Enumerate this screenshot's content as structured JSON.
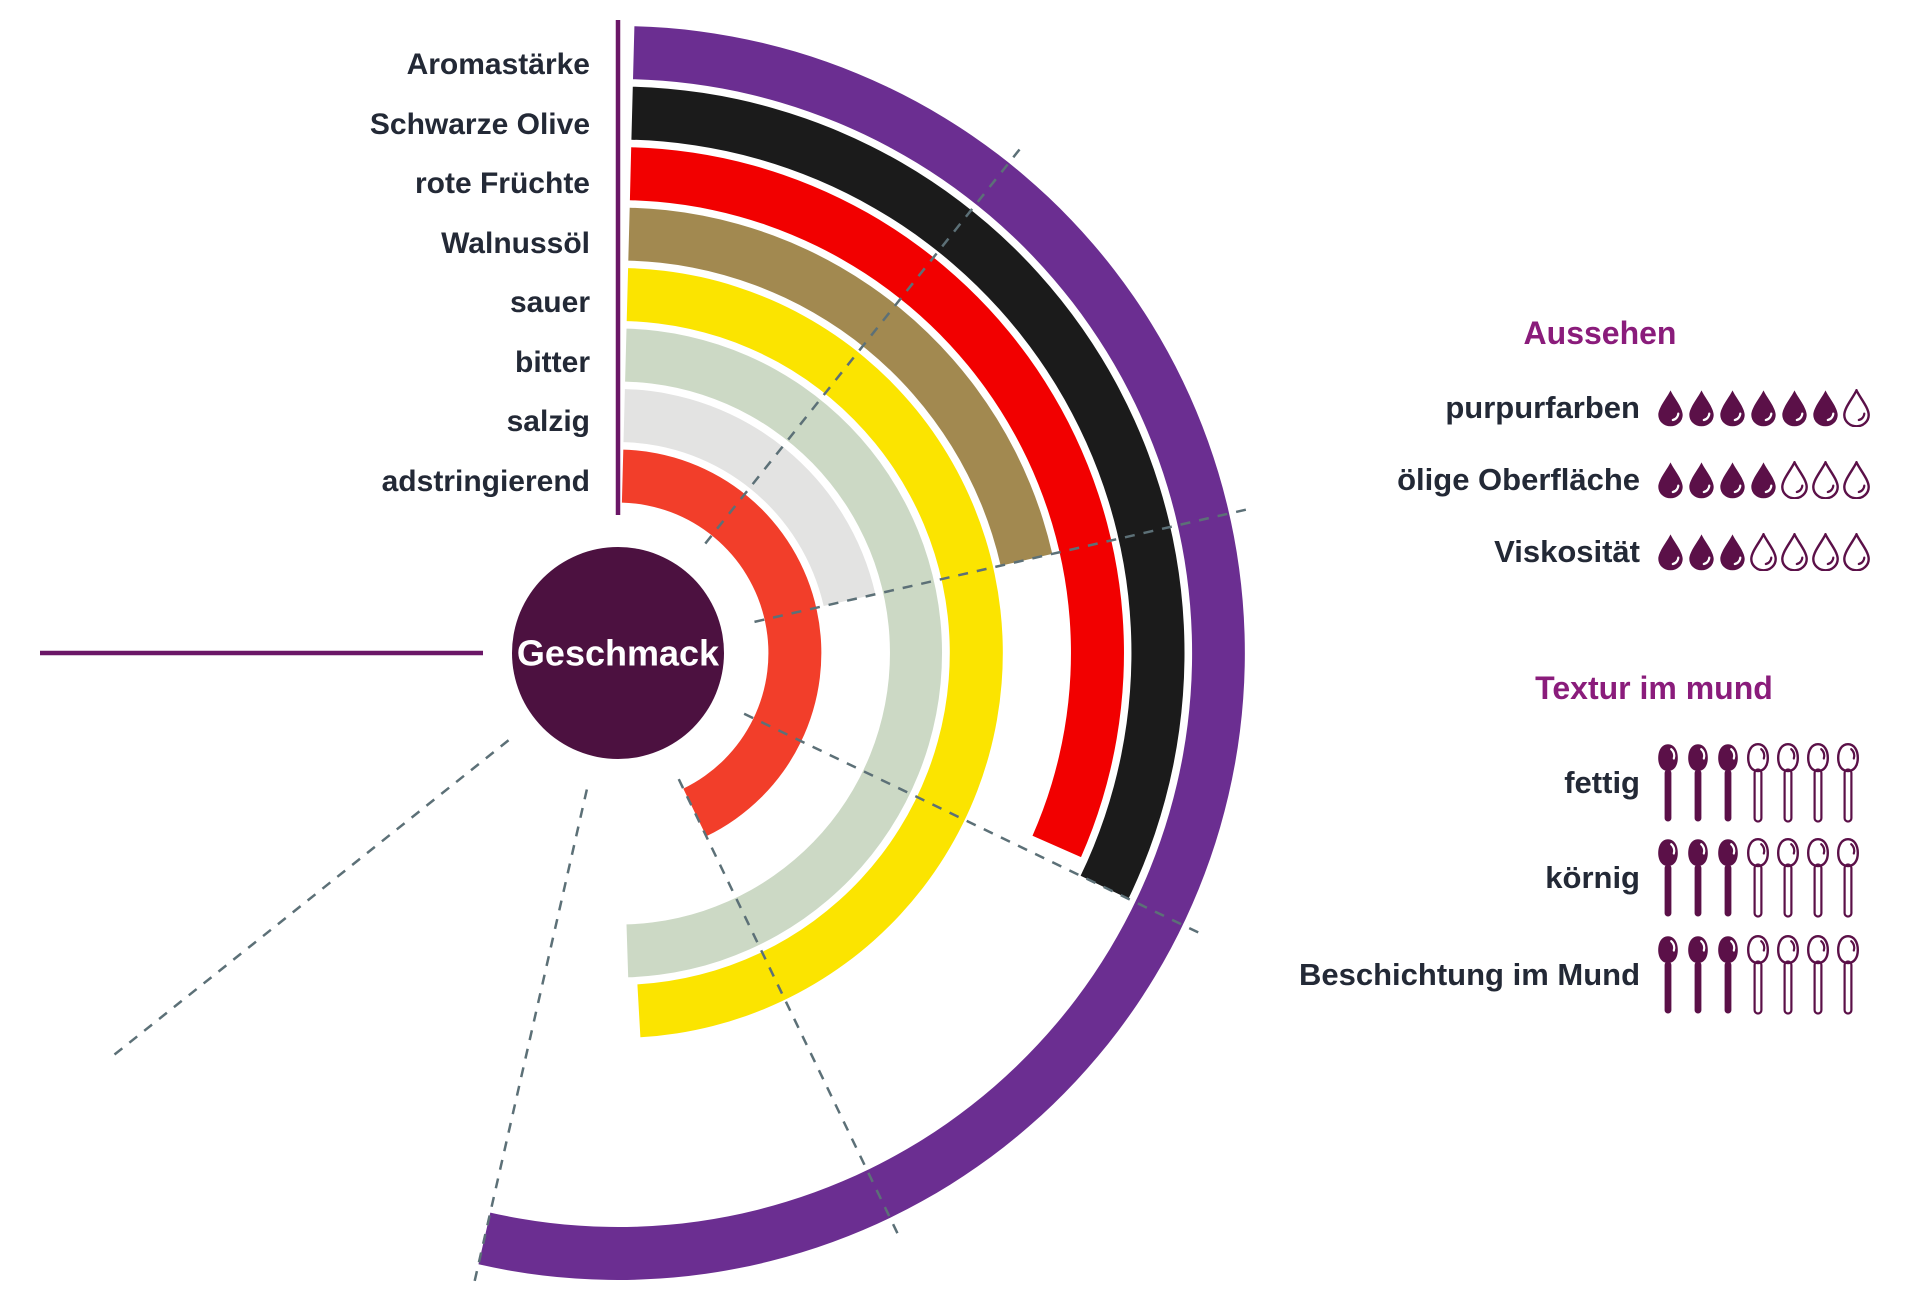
{
  "chart_data": {
    "type": "radial_arc_bars",
    "center_label": "Geschmack",
    "scale": {
      "max": 7,
      "full_sweep_deg": 270,
      "gridline_units": [
        1,
        2,
        3,
        4,
        5,
        6
      ]
    },
    "rings": [
      {
        "label": "Aromastärke",
        "value": 5.0,
        "color": "#6B2E91"
      },
      {
        "label": "Schwarze Olive",
        "value": 3.0,
        "color": "#1B1B1B"
      },
      {
        "label": "rote Früchte",
        "value": 2.95,
        "color": "#F20000"
      },
      {
        "label": "Walnussöl",
        "value": 2.0,
        "color": "#A28950"
      },
      {
        "label": "sauer",
        "value": 4.58,
        "color": "#FBE400"
      },
      {
        "label": "bitter",
        "value": 4.62,
        "color": "#CCD9C5"
      },
      {
        "label": "salzig",
        "value": 2.0,
        "color": "#E3E3E2"
      },
      {
        "label": "adstringierend",
        "value": 4.0,
        "color": "#F23E2A"
      }
    ]
  },
  "panels": {
    "aussehen": {
      "title": "Aussehen",
      "icon": "droplet",
      "rows": [
        {
          "label": "purpurfarben",
          "filled": 6,
          "total": 7
        },
        {
          "label": "ölige Oberfläche",
          "filled": 4,
          "total": 7
        },
        {
          "label": "Viskosität",
          "filled": 3,
          "total": 7
        }
      ]
    },
    "textur": {
      "title": "Textur im mund",
      "icon": "spoon",
      "rows": [
        {
          "label": "fettig",
          "filled": 3,
          "total": 7
        },
        {
          "label": "körnig",
          "filled": 3,
          "total": 7
        },
        {
          "label": "Beschichtung im Mund",
          "filled": 3,
          "total": 7
        }
      ]
    }
  },
  "colors": {
    "background": "#FFFFFF",
    "center_circle": "#4C1140",
    "center_text": "#FFFFFF",
    "axis_line": "#6B1767",
    "gridline": "#5C7077",
    "heading": "#8A1C7B",
    "label_text": "#232936",
    "icon": "#5B1048",
    "icon_shine": "#FFFFFF"
  }
}
